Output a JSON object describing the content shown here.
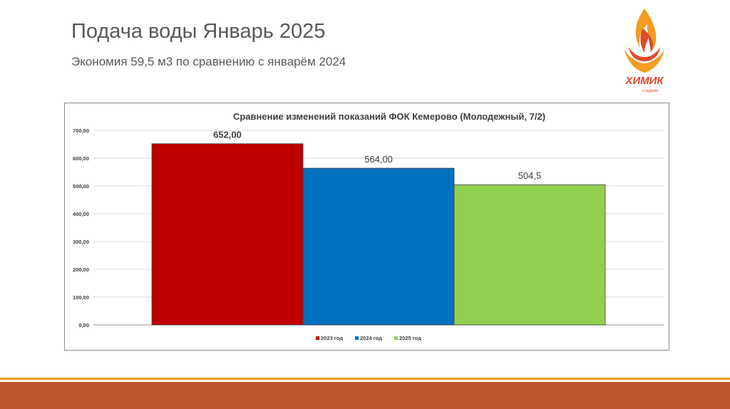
{
  "slide": {
    "title": "Подача воды Январь 2025",
    "subtitle": "Экономия 59,5 м3 по сравнению с январём 2024"
  },
  "logo": {
    "text": "ХИМИК",
    "subtext": "стадион",
    "icon": "flame-icon",
    "colors": {
      "flame_red": "#e0492a",
      "flame_orange": "#f39c1f",
      "text": "#e0492a"
    }
  },
  "chart_data": {
    "type": "bar",
    "title": "Сравнение изменений показаний ФОК Кемерово (Молодежный, 7/2)",
    "xlabel": "",
    "ylabel": "",
    "ylim": [
      0,
      700
    ],
    "yticks": [
      "0,00",
      "100,00",
      "200,00",
      "300,00",
      "400,00",
      "500,00",
      "600,00",
      "700,00"
    ],
    "ytick_values": [
      0,
      100,
      200,
      300,
      400,
      500,
      600,
      700
    ],
    "grid": true,
    "legend_position": "bottom",
    "series": [
      {
        "name": "2023 год",
        "value": 652.0,
        "label": "652,00",
        "color": "#c00000"
      },
      {
        "name": "2024 год",
        "value": 564.0,
        "label": "564,00",
        "color": "#0070c0"
      },
      {
        "name": "2025 год",
        "value": 504.5,
        "label": "504,5",
        "color": "#92d050"
      }
    ]
  }
}
